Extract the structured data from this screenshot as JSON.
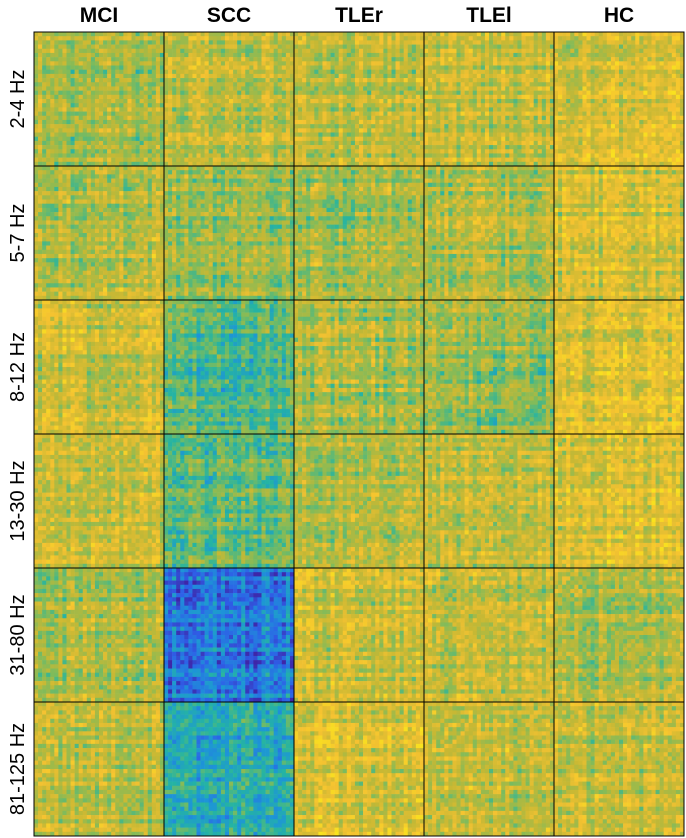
{
  "chart_data": {
    "type": "heatmap",
    "title": "",
    "columns": [
      "MCI",
      "SCC",
      "TLEr",
      "TLEl",
      "HC"
    ],
    "rows": [
      "2-4 Hz",
      "5-7 Hz",
      "8-12 Hz",
      "13-30 Hz",
      "31-80 Hz",
      "81-125 Hz"
    ],
    "matrix_size": 32,
    "symmetric": true,
    "colormap": "parula",
    "palette": [
      "#3e26a8",
      "#2e5fe8",
      "#1d95d7",
      "#25b4a2",
      "#7ebb5c",
      "#c6b834",
      "#f5c231",
      "#f9e31e"
    ],
    "mean_level": [
      [
        0.64,
        0.7,
        0.69,
        0.73,
        0.77
      ],
      [
        0.7,
        0.62,
        0.65,
        0.67,
        0.75
      ],
      [
        0.74,
        0.48,
        0.66,
        0.61,
        0.77
      ],
      [
        0.71,
        0.52,
        0.66,
        0.72,
        0.77
      ],
      [
        0.67,
        0.22,
        0.73,
        0.73,
        0.64
      ],
      [
        0.68,
        0.36,
        0.75,
        0.71,
        0.72
      ]
    ]
  }
}
